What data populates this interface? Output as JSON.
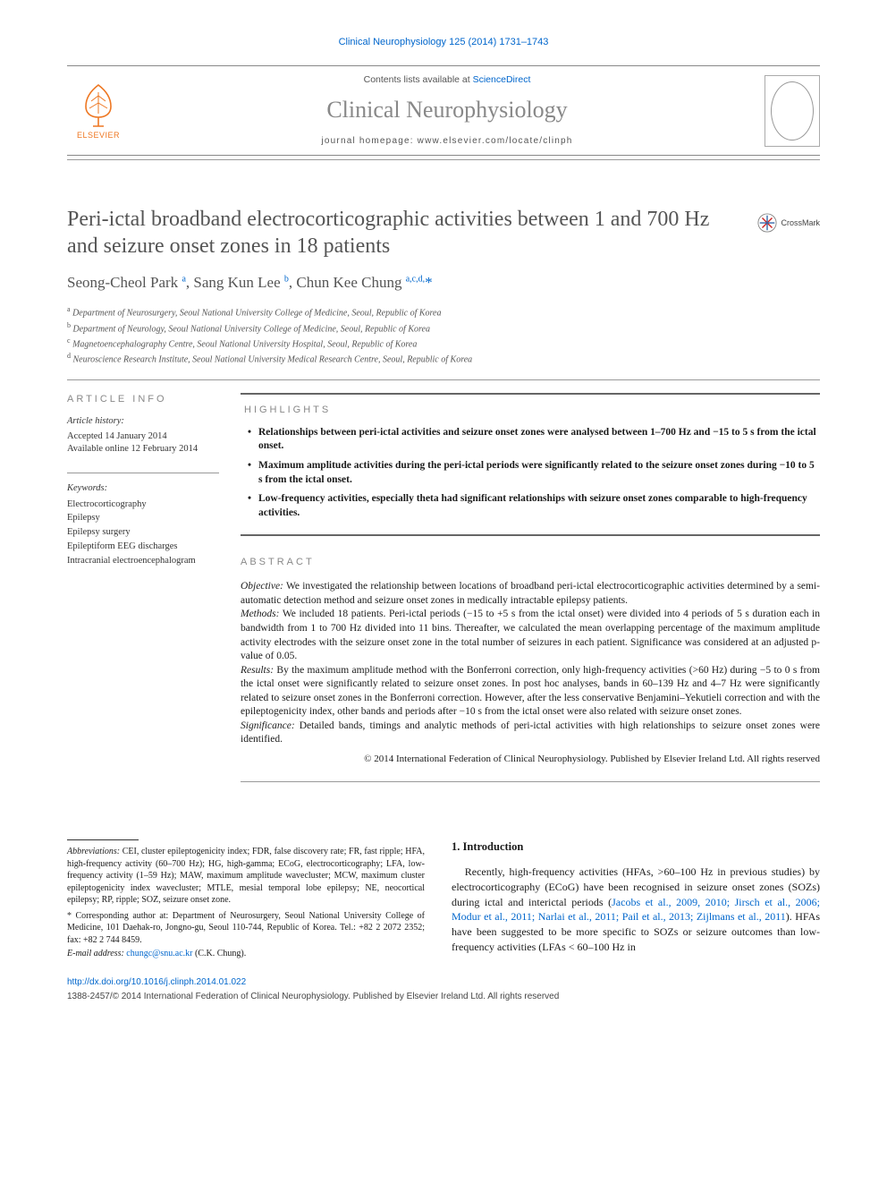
{
  "citation": "Clinical Neurophysiology 125 (2014) 1731–1743",
  "header": {
    "contents_prefix": "Contents lists available at ",
    "contents_link": "ScienceDirect",
    "journal_name": "Clinical Neurophysiology",
    "homepage_label": "journal homepage: www.elsevier.com/locate/clinph",
    "elsevier_label": "ELSEVIER",
    "crossmark": "CrossMark"
  },
  "article": {
    "title": "Peri-ictal broadband electrocorticographic activities between 1 and 700 Hz and seizure onset zones in 18 patients",
    "authors_html": "Seong-Cheol Park <sup>a</sup>, Sang Kun Lee <sup>b</sup>, Chun Kee Chung <sup>a,c,d,</sup><span class='star-sup'>*</span>",
    "affiliations": [
      "a Department of Neurosurgery, Seoul National University College of Medicine, Seoul, Republic of Korea",
      "b Department of Neurology, Seoul National University College of Medicine, Seoul, Republic of Korea",
      "c Magnetoencephalography Centre, Seoul National University Hospital, Seoul, Republic of Korea",
      "d Neuroscience Research Institute, Seoul National University Medical Research Centre, Seoul, Republic of Korea"
    ]
  },
  "info": {
    "label": "ARTICLE INFO",
    "history_head": "Article history:",
    "history_lines": [
      "Accepted 14 January 2014",
      "Available online 12 February 2014"
    ],
    "keywords_head": "Keywords:",
    "keywords": [
      "Electrocorticography",
      "Epilepsy",
      "Epilepsy surgery",
      "Epileptiform EEG discharges",
      "Intracranial electroencephalogram"
    ]
  },
  "highlights": {
    "label": "HIGHLIGHTS",
    "items": [
      "Relationships between peri-ictal activities and seizure onset zones were analysed between 1–700 Hz and −15 to 5 s from the ictal onset.",
      "Maximum amplitude activities during the peri-ictal periods were significantly related to the seizure onset zones during −10 to 5 s from the ictal onset.",
      "Low-frequency activities, especially theta had significant relationships with seizure onset zones comparable to high-frequency activities."
    ]
  },
  "abstract": {
    "label": "ABSTRACT",
    "objective_head": "Objective:",
    "objective": " We investigated the relationship between locations of broadband peri-ictal electrocorticographic activities determined by a semi-automatic detection method and seizure onset zones in medically intractable epilepsy patients.",
    "methods_head": "Methods:",
    "methods": " We included 18 patients. Peri-ictal periods (−15 to +5 s from the ictal onset) were divided into 4 periods of 5 s duration each in bandwidth from 1 to 700 Hz divided into 11 bins. Thereafter, we calculated the mean overlapping percentage of the maximum amplitude activity electrodes with the seizure onset zone in the total number of seizures in each patient. Significance was considered at an adjusted p-value of 0.05.",
    "results_head": "Results:",
    "results": " By the maximum amplitude method with the Bonferroni correction, only high-frequency activities (>60 Hz) during −5 to 0 s from the ictal onset were significantly related to seizure onset zones. In post hoc analyses, bands in 60–139 Hz and 4–7 Hz were significantly related to seizure onset zones in the Bonferroni correction. However, after the less conservative Benjamini–Yekutieli correction and with the epileptogenicity index, other bands and periods after −10 s from the ictal onset were also related with seizure onset zones.",
    "significance_head": "Significance:",
    "significance": " Detailed bands, timings and analytic methods of peri-ictal activities with high relationships to seizure onset zones were identified.",
    "copyright": "© 2014 International Federation of Clinical Neurophysiology. Published by Elsevier Ireland Ltd. All rights reserved"
  },
  "footnotes": {
    "abbrev_head": "Abbreviations:",
    "abbrev_body": " CEI, cluster epileptogenicity index; FDR, false discovery rate; FR, fast ripple; HFA, high-frequency activity (60–700 Hz); HG, high-gamma; ECoG, electrocorticography; LFA, low-frequency activity (1–59 Hz); MAW, maximum amplitude wavecluster; MCW, maximum cluster epileptogenicity index wavecluster; MTLE, mesial temporal lobe epilepsy; NE, neocortical epilepsy; RP, ripple; SOZ, seizure onset zone.",
    "corr_marker": "*",
    "corr_body": " Corresponding author at: Department of Neurosurgery, Seoul National University College of Medicine, 101 Daehak-ro, Jongno-gu, Seoul 110-744, Republic of Korea. Tel.: +82 2 2072 2352; fax: +82 2 744 8459.",
    "email_head": "E-mail address:",
    "email": "chungc@snu.ac.kr",
    "email_tail": " (C.K. Chung)."
  },
  "intro": {
    "heading": "1. Introduction",
    "body_prefix": "Recently, high-frequency activities (HFAs, >60–100 Hz in previous studies) by electrocorticography (ECoG) have been recognised in seizure onset zones (SOZs) during ictal and interictal periods (",
    "refs": "Jacobs et al., 2009, 2010; Jirsch et al., 2006; Modur et al., 2011; Narlai et al., 2011; Pail et al., 2013; Zijlmans et al., 2011",
    "body_suffix": "). HFAs have been suggested to be more specific to SOZs or seizure outcomes than low-frequency activities (LFAs < 60–100 Hz in"
  },
  "doi": {
    "url": "http://dx.doi.org/10.1016/j.clinph.2014.01.022",
    "issn_line": "1388-2457/© 2014 International Federation of Clinical Neurophysiology. Published by Elsevier Ireland Ltd. All rights reserved"
  },
  "colors": {
    "link": "#0066cc",
    "elsevier": "#ee7722",
    "muted": "#888888",
    "title_gray": "#555555"
  }
}
